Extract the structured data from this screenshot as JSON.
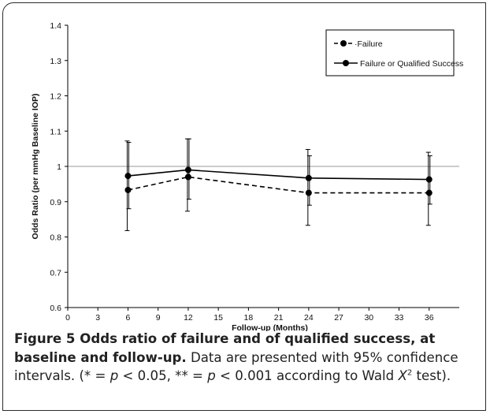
{
  "chart_data": {
    "type": "line",
    "x": [
      6,
      12,
      24,
      36
    ],
    "series": [
      {
        "name": "Failure",
        "style": "dashed",
        "values": [
          0.933,
          0.97,
          0.925,
          0.925
        ],
        "ci_lower": [
          0.818,
          0.873,
          0.833,
          0.833
        ],
        "ci_upper": [
          1.072,
          1.078,
          1.048,
          1.04
        ]
      },
      {
        "name": "Failure or Qualified Success",
        "style": "solid",
        "values": [
          0.973,
          0.99,
          0.967,
          0.963
        ],
        "ci_lower": [
          0.88,
          0.907,
          0.89,
          0.893
        ],
        "ci_upper": [
          1.068,
          1.078,
          1.03,
          1.03
        ]
      }
    ],
    "xlabel": "Follow-up (Months)",
    "ylabel": "Odds Ratio (per mmHg Baseline IOP)",
    "xlim": [
      0,
      39
    ],
    "ylim": [
      0.6,
      1.4
    ],
    "xticks": [
      0,
      3,
      6,
      9,
      12,
      15,
      18,
      21,
      24,
      27,
      30,
      33,
      36
    ],
    "yticks": [
      "0.6",
      "0.7",
      "0.8",
      "0.9",
      "1",
      "1.1",
      "1.2",
      "1.3",
      "1.4"
    ],
    "reference_line": 1,
    "legend": [
      "- ● ·Failure",
      "Failure or Qualified Success"
    ],
    "legend_position": "top-right",
    "grid": false
  },
  "caption": {
    "lead": "Figure 5 Odds ratio of failure and of qualified success, at baseline and follow-up.",
    "p1": " Data are presented with 95% confidence intervals. (* = ",
    "p_sym1": "p",
    "p2": " < 0.05, ** = ",
    "p_sym2": "p",
    "p3": " < 0.001 according to Wald ",
    "x_sym": "X",
    "sup": "2",
    "p4": " test)."
  },
  "colors": {
    "line": "#000000",
    "ref_line": "#9a9a9a",
    "frame": "#2b2b2b"
  }
}
